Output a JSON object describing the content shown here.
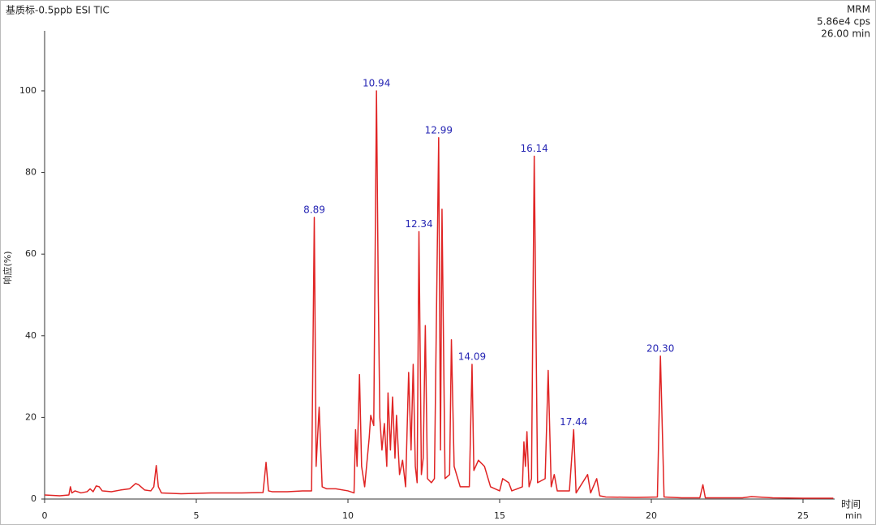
{
  "chart_data": {
    "type": "line",
    "title": "基质标-0.5ppb ESI TIC",
    "info": [
      "MRM",
      "5.86e4 cps",
      "26.00 min"
    ],
    "y_label": "响应(%)",
    "x_label": "时间",
    "x_unit": "min",
    "xlim": [
      0,
      26
    ],
    "ylim": [
      0,
      115
    ],
    "xticks": [
      0,
      5,
      10,
      15,
      20,
      25
    ],
    "yticks": [
      0,
      20,
      40,
      60,
      80,
      100
    ],
    "x": [
      0,
      0.5,
      0.8,
      0.85,
      0.9,
      1.0,
      1.2,
      1.4,
      1.5,
      1.6,
      1.7,
      1.8,
      1.9,
      2.2,
      2.5,
      2.8,
      3.0,
      3.1,
      3.3,
      3.5,
      3.6,
      3.68,
      3.75,
      3.85,
      4.5,
      5.5,
      6.5,
      7.2,
      7.3,
      7.38,
      7.5,
      8.0,
      8.5,
      8.8,
      8.89,
      8.95,
      9.05,
      9.15,
      9.3,
      9.6,
      10.0,
      10.2,
      10.25,
      10.3,
      10.38,
      10.45,
      10.55,
      10.7,
      10.75,
      10.85,
      10.94,
      11.0,
      11.05,
      11.12,
      11.2,
      11.28,
      11.32,
      11.4,
      11.47,
      11.55,
      11.6,
      11.7,
      11.8,
      11.9,
      12.0,
      12.08,
      12.15,
      12.22,
      12.28,
      12.34,
      12.42,
      12.48,
      12.55,
      12.62,
      12.75,
      12.85,
      12.99,
      13.05,
      13.1,
      13.2,
      13.35,
      13.41,
      13.5,
      13.7,
      14.0,
      14.09,
      14.15,
      14.3,
      14.5,
      14.7,
      15.0,
      15.1,
      15.3,
      15.4,
      15.75,
      15.8,
      15.85,
      15.9,
      15.97,
      16.05,
      16.14,
      16.25,
      16.5,
      16.6,
      16.7,
      16.8,
      16.9,
      17.3,
      17.44,
      17.52,
      17.9,
      18.0,
      18.2,
      18.3,
      18.5,
      19.5,
      20.2,
      20.3,
      20.42,
      21.0,
      21.6,
      21.7,
      21.78,
      23.0,
      23.3,
      24,
      25,
      26
    ],
    "series": [
      {
        "color": "#e02424",
        "values": [
          1.0,
          0.8,
          1.0,
          3.0,
          1.5,
          2.0,
          1.5,
          1.8,
          2.5,
          1.8,
          3.2,
          3.0,
          2.0,
          1.8,
          2.2,
          2.5,
          3.8,
          3.5,
          2.2,
          2.0,
          3.0,
          8.2,
          3.0,
          1.5,
          1.3,
          1.5,
          1.5,
          1.6,
          9.0,
          2.0,
          1.8,
          1.8,
          2.0,
          2.0,
          69,
          8.0,
          22.5,
          3.0,
          2.5,
          2.5,
          2.0,
          1.5,
          17.0,
          8,
          30.5,
          8,
          3,
          15,
          20.5,
          18,
          100,
          50,
          20,
          12,
          18.5,
          8,
          26,
          12,
          25,
          10,
          20.5,
          6,
          9.5,
          3,
          31,
          12,
          33,
          8,
          4,
          65.5,
          6,
          10,
          42.5,
          5,
          4,
          5,
          88.5,
          12,
          71,
          5,
          6,
          39,
          8,
          3,
          3,
          33,
          7,
          9.5,
          8,
          3,
          2,
          5,
          4,
          2,
          3,
          14,
          8,
          16.5,
          3,
          5,
          84,
          4,
          5,
          31.5,
          3,
          6,
          2,
          2,
          17,
          1.5,
          6,
          1.5,
          5,
          0.8,
          0.5,
          0.4,
          0.5,
          35,
          0.5,
          0.3,
          0.3,
          3.5,
          0.3,
          0.3,
          0.6,
          0.3,
          0.2,
          0.2
        ]
      }
    ],
    "annotations": [
      {
        "x": 8.89,
        "y": 69,
        "label": "8.89"
      },
      {
        "x": 10.94,
        "y": 100,
        "label": "10.94"
      },
      {
        "x": 12.34,
        "y": 65.5,
        "label": "12.34"
      },
      {
        "x": 12.99,
        "y": 88.5,
        "label": "12.99"
      },
      {
        "x": 14.09,
        "y": 33,
        "label": "14.09"
      },
      {
        "x": 16.14,
        "y": 84,
        "label": "16.14"
      },
      {
        "x": 17.44,
        "y": 17,
        "label": "17.44"
      },
      {
        "x": 20.3,
        "y": 35,
        "label": "20.30"
      }
    ]
  }
}
